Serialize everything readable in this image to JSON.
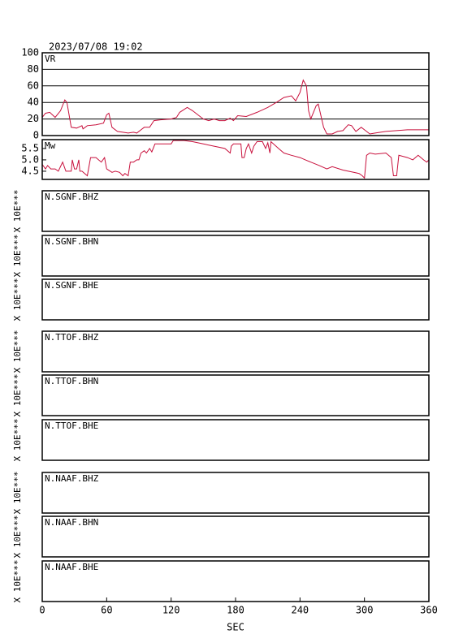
{
  "chart_data": [
    {
      "type": "line",
      "title": "2023/07/08 19:02",
      "label": "VR",
      "color": "#c8103c",
      "grid": true,
      "xlim": [
        0,
        360
      ],
      "ylim": [
        0,
        100
      ],
      "yticks": [
        0,
        20,
        40,
        60,
        80,
        100
      ],
      "x": [
        0,
        3,
        7,
        12,
        17,
        21,
        23,
        27,
        32,
        37,
        38,
        42,
        50,
        57,
        60,
        62,
        65,
        70,
        80,
        85,
        88,
        92,
        95,
        100,
        104,
        110,
        120,
        125,
        128,
        135,
        140,
        145,
        150,
        155,
        160,
        165,
        170,
        175,
        178,
        182,
        190,
        200,
        210,
        218,
        225,
        232,
        236,
        240,
        243,
        246,
        248,
        250,
        255,
        257,
        262,
        265,
        270,
        275,
        280,
        285,
        288,
        292,
        297,
        300,
        305,
        310,
        320,
        330,
        340,
        350,
        360
      ],
      "values": [
        22,
        27,
        28,
        22,
        30,
        43,
        40,
        10,
        9,
        12,
        8,
        12,
        13,
        15,
        25,
        27,
        10,
        5,
        3,
        4,
        3,
        7,
        10,
        10,
        18,
        19,
        20,
        22,
        28,
        34,
        30,
        25,
        20,
        18,
        20,
        18,
        18,
        21,
        18,
        24,
        23,
        28,
        34,
        40,
        46,
        48,
        42,
        52,
        67,
        60,
        30,
        20,
        36,
        38,
        10,
        2,
        2,
        5,
        6,
        13,
        12,
        5,
        10,
        7,
        2,
        3,
        5,
        6,
        7,
        7,
        7
      ]
    },
    {
      "type": "line",
      "label": "Mw",
      "color": "#c8103c",
      "xlim": [
        0,
        360
      ],
      "ylim": [
        4.14,
        5.89
      ],
      "yticks": [
        {
          "value": 4.5,
          "label": "4.5"
        },
        {
          "value": 5,
          "label": "5.0"
        },
        {
          "value": 5.5,
          "label": "5.5"
        }
      ],
      "x": [
        0,
        3,
        5,
        8,
        12,
        15,
        19,
        22,
        27,
        28,
        30,
        32,
        34,
        35,
        37,
        42,
        45,
        50,
        55,
        58,
        60,
        65,
        68,
        72,
        75,
        77,
        80,
        82,
        85,
        88,
        90,
        92,
        95,
        97,
        100,
        102,
        105,
        120,
        122,
        132,
        140,
        150,
        160,
        170,
        175,
        176,
        178,
        185,
        186,
        188,
        190,
        192,
        195,
        197,
        200,
        205,
        208,
        210,
        212,
        213,
        220,
        225,
        232,
        240,
        245,
        250,
        258,
        265,
        270,
        280,
        290,
        295,
        298,
        300,
        302,
        305,
        310,
        320,
        325,
        327,
        330,
        332,
        340,
        345,
        350,
        355,
        358,
        360
      ],
      "values": [
        4.8,
        4.6,
        4.75,
        4.6,
        4.6,
        4.5,
        4.9,
        4.5,
        4.5,
        5.0,
        4.6,
        4.6,
        5.0,
        4.5,
        4.5,
        4.3,
        5.1,
        5.1,
        4.9,
        5.1,
        4.6,
        4.45,
        4.5,
        4.45,
        4.3,
        4.4,
        4.3,
        4.9,
        4.9,
        5.0,
        5.0,
        5.3,
        5.4,
        5.3,
        5.5,
        5.35,
        5.7,
        5.7,
        5.85,
        5.85,
        5.8,
        5.7,
        5.6,
        5.5,
        5.3,
        5.6,
        5.7,
        5.7,
        5.1,
        5.1,
        5.5,
        5.7,
        5.3,
        5.6,
        5.8,
        5.8,
        5.5,
        5.75,
        5.3,
        5.8,
        5.5,
        5.3,
        5.2,
        5.1,
        5.0,
        4.9,
        4.75,
        4.6,
        4.7,
        4.55,
        4.45,
        4.4,
        4.3,
        4.2,
        5.2,
        5.3,
        5.25,
        5.3,
        5.1,
        4.3,
        4.3,
        5.2,
        5.1,
        5.0,
        5.2,
        5.0,
        4.9,
        5.0
      ]
    },
    {
      "type": "empty",
      "label": "N.SGNF.BHZ",
      "scale_label": "X 10E***"
    },
    {
      "type": "empty",
      "label": "N.SGNF.BHN",
      "scale_label": "X 10E***"
    },
    {
      "type": "empty",
      "label": "N.SGNF.BHE",
      "scale_label": "X 10E***"
    },
    {
      "type": "empty",
      "label": "N.TTOF.BHZ",
      "scale_label": "X 10E***"
    },
    {
      "type": "empty",
      "label": "N.TTOF.BHN",
      "scale_label": "X 10E***"
    },
    {
      "type": "empty",
      "label": "N.TTOF.BHE",
      "scale_label": "X 10E***"
    },
    {
      "type": "empty",
      "label": "N.NAAF.BHZ",
      "scale_label": "X 10E***"
    },
    {
      "type": "empty",
      "label": "N.NAAF.BHN",
      "scale_label": "X 10E***"
    },
    {
      "type": "empty",
      "label": "N.NAAF.BHE",
      "scale_label": "X 10E***",
      "xlim": [
        0,
        360
      ],
      "xticks": [
        0,
        60,
        120,
        180,
        240,
        300,
        360
      ],
      "xlabel": "SEC"
    }
  ]
}
